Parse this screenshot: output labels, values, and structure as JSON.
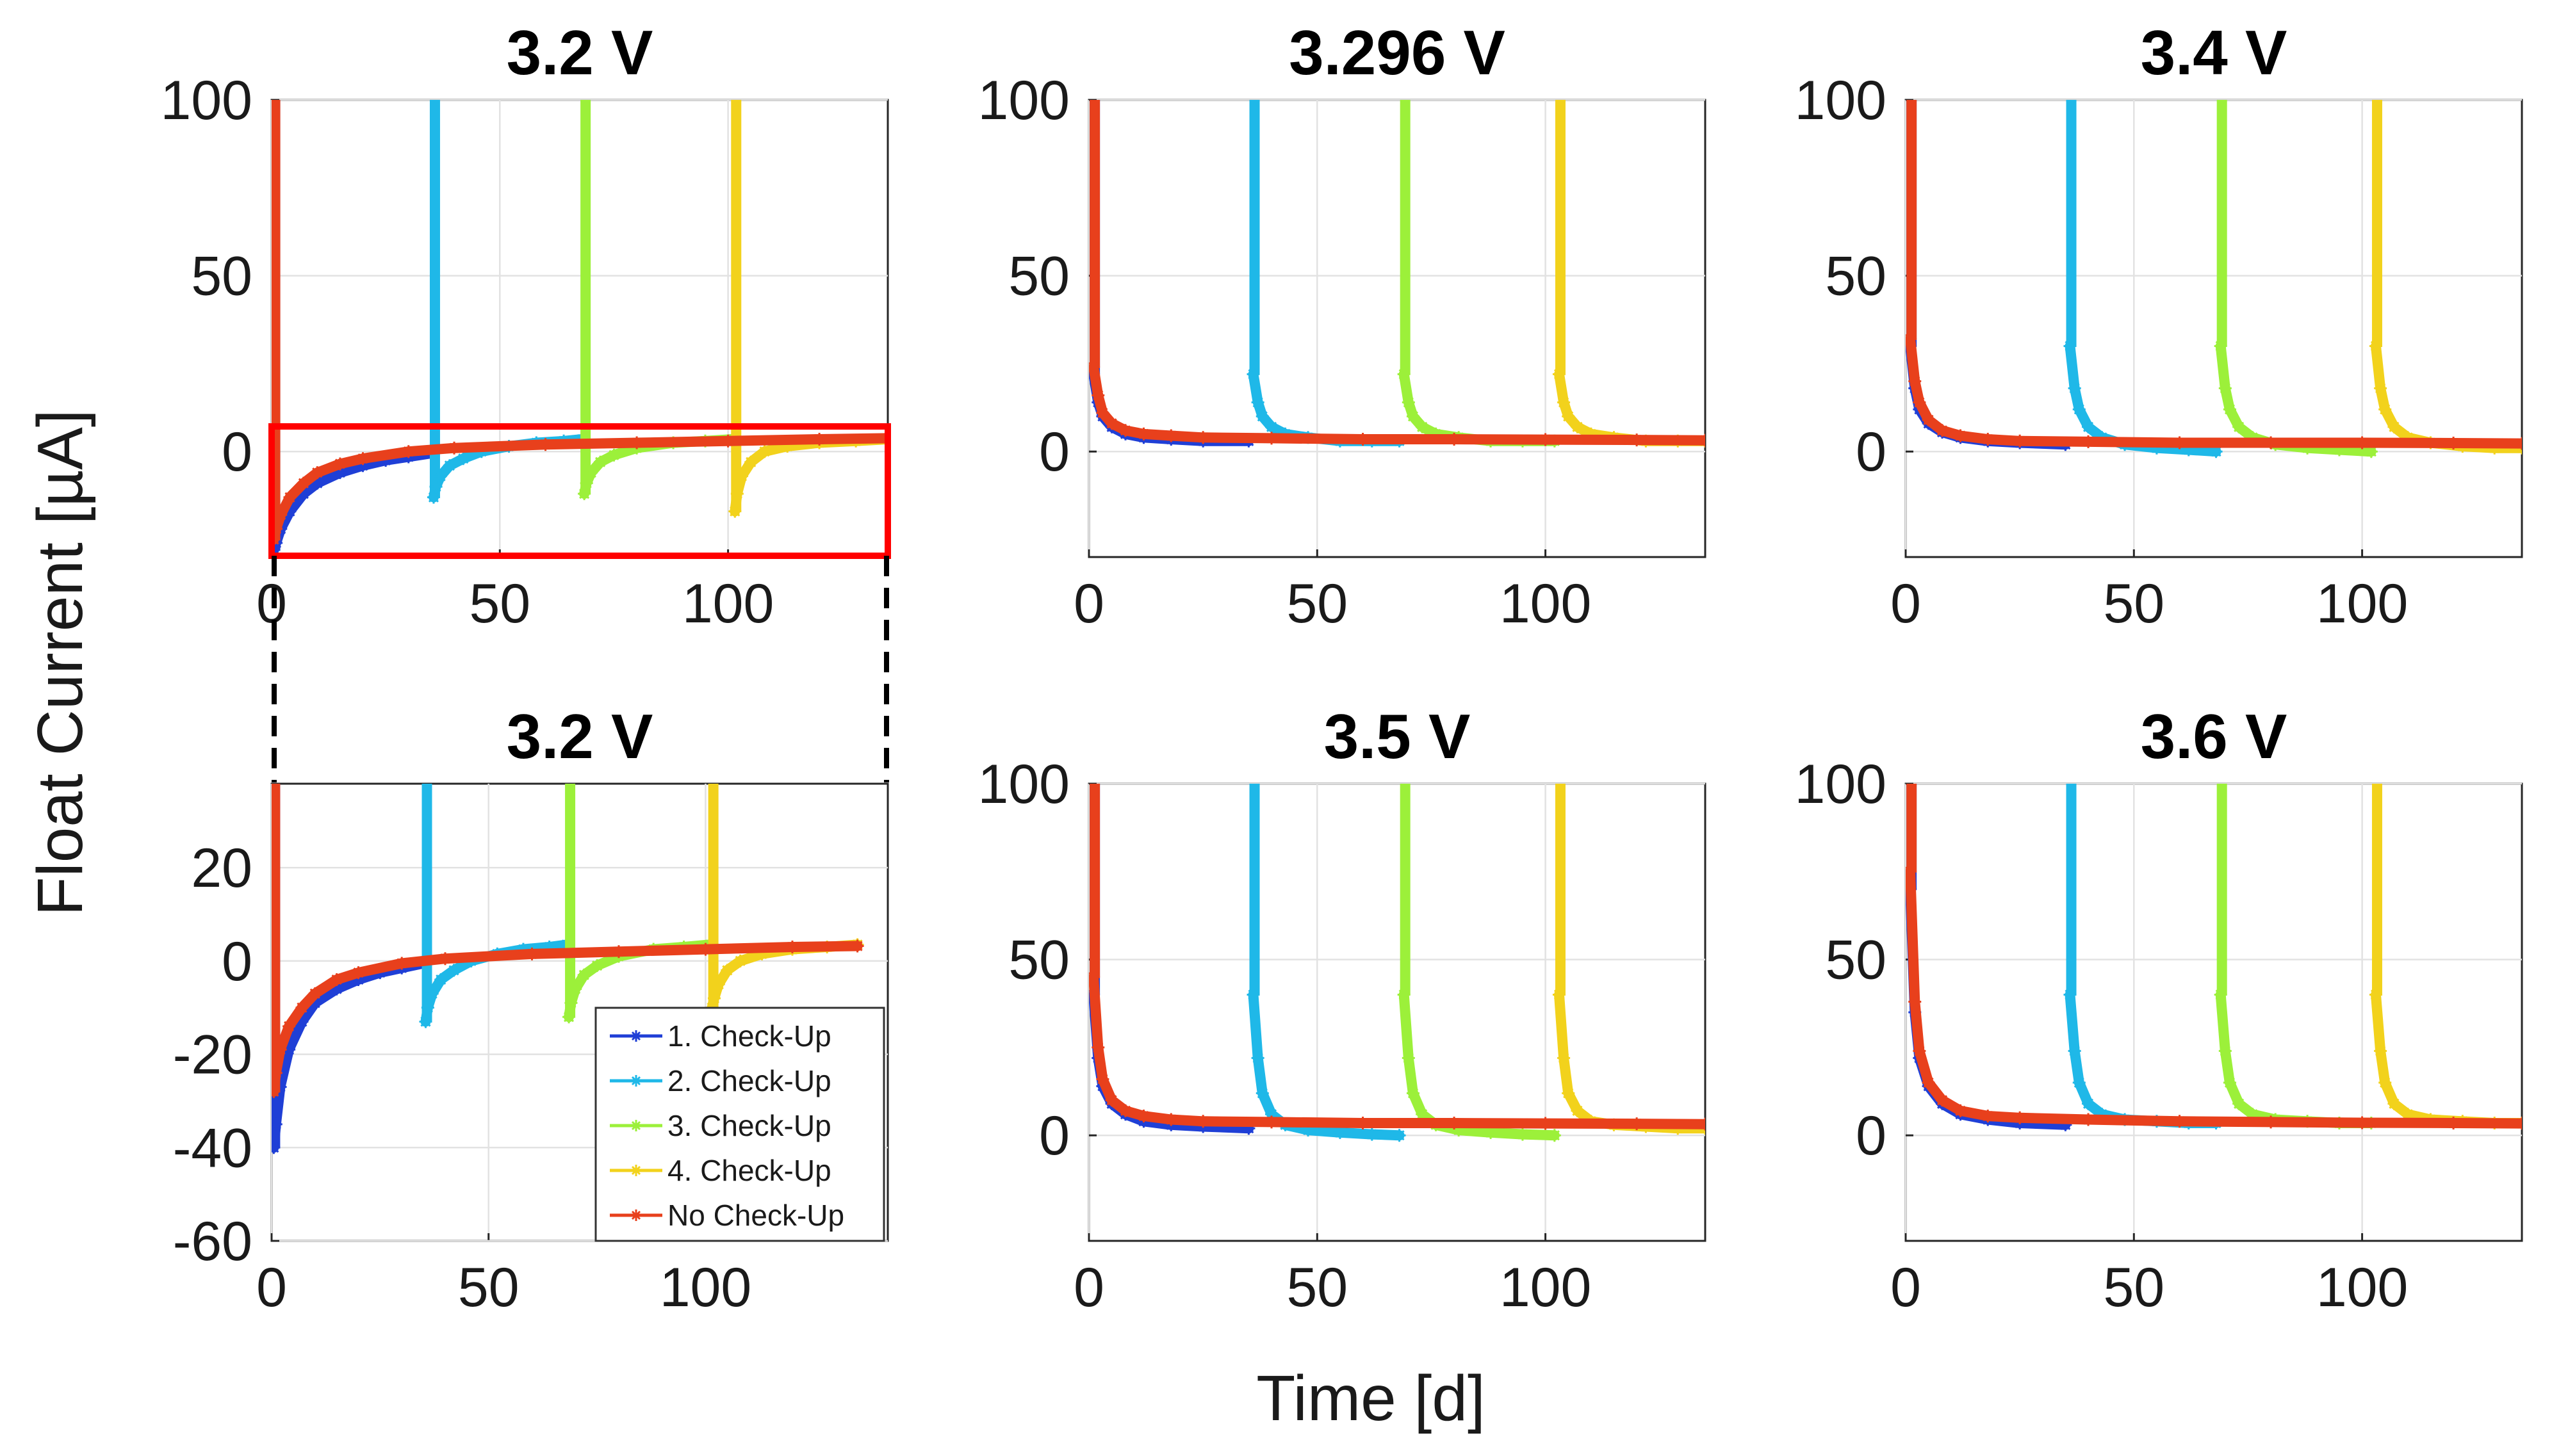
{
  "figure": {
    "ylabel": "Float Current [µA]",
    "xlabel": "Time [d]",
    "zoom_box_color": "#ff0000"
  },
  "legend": {
    "entries": [
      {
        "label": "1. Check-Up",
        "color": "#1f3fd6"
      },
      {
        "label": "2. Check-Up",
        "color": "#1fb8e8"
      },
      {
        "label": "3. Check-Up",
        "color": "#9cf03a"
      },
      {
        "label": "4. Check-Up",
        "color": "#f2d21c"
      },
      {
        "label": "No Check-Up",
        "color": "#e8401c"
      }
    ]
  },
  "chart_data": [
    {
      "id": "p1",
      "type": "line",
      "title": "3.2 V",
      "xlim": [
        0,
        135
      ],
      "ylim": [
        -30,
        100
      ],
      "xticks": [
        "0",
        "50",
        "100"
      ],
      "yticks": [
        "100",
        "50",
        "0"
      ],
      "series": [
        {
          "name": "1. Check-Up",
          "x": [
            0.5,
            1,
            2,
            4,
            7,
            10,
            15,
            20,
            25,
            30,
            35
          ],
          "y": [
            -28,
            -26,
            -22,
            -17,
            -12,
            -9,
            -6,
            -4,
            -2.5,
            -1.5,
            -0.5
          ]
        },
        {
          "name": "2. Check-Up",
          "x": [
            35.5,
            36,
            37,
            39,
            42,
            46,
            52,
            58,
            64,
            68
          ],
          "y": [
            -13,
            -10,
            -7,
            -4,
            -2,
            0,
            1.5,
            2.5,
            3,
            3.5
          ]
        },
        {
          "name": "3. Check-Up",
          "x": [
            68.5,
            69,
            70,
            72,
            75,
            80,
            88,
            95,
            101
          ],
          "y": [
            -12,
            -9,
            -6,
            -3,
            -1,
            1,
            2.5,
            3,
            3.5
          ]
        },
        {
          "name": "4. Check-Up",
          "x": [
            101.5,
            102,
            103,
            105,
            108,
            113,
            120,
            128,
            135
          ],
          "y": [
            -17,
            -12,
            -7,
            -3,
            0,
            1.5,
            2.5,
            3,
            3.5
          ]
        },
        {
          "name": "No Check-Up",
          "x": [
            0.5,
            1,
            2,
            4,
            7,
            10,
            15,
            20,
            30,
            40,
            60,
            80,
            100,
            120,
            135
          ],
          "y": [
            -25,
            -22,
            -18,
            -13,
            -9,
            -6,
            -3.5,
            -2,
            0,
            1,
            2,
            2.5,
            3,
            3.5,
            3.8
          ]
        }
      ]
    },
    {
      "id": "p2",
      "type": "line",
      "title": "3.296 V",
      "xlim": [
        0,
        135
      ],
      "ylim": [
        -30,
        100
      ],
      "xticks": [
        "0",
        "50",
        "100"
      ],
      "yticks": [
        "100",
        "50",
        "0"
      ],
      "series": [
        {
          "name": "1. Check-Up",
          "x": [
            1,
            2,
            3,
            5,
            8,
            12,
            18,
            25,
            35
          ],
          "y": [
            22,
            14,
            10,
            7,
            5,
            4,
            3.5,
            3,
            3
          ]
        },
        {
          "name": "2. Check-Up",
          "x": [
            36,
            37,
            38,
            40,
            43,
            48,
            55,
            62,
            68
          ],
          "y": [
            22,
            14,
            10,
            7,
            5,
            4,
            3,
            3,
            3
          ]
        },
        {
          "name": "3. Check-Up",
          "x": [
            69,
            70,
            71,
            73,
            76,
            81,
            88,
            95,
            102
          ],
          "y": [
            22,
            14,
            10,
            7,
            5,
            4,
            3,
            3,
            3
          ]
        },
        {
          "name": "4. Check-Up",
          "x": [
            103,
            104,
            105,
            107,
            110,
            115,
            122,
            129,
            135
          ],
          "y": [
            22,
            14,
            10,
            7,
            5,
            4,
            3,
            3,
            3
          ]
        },
        {
          "name": "No Check-Up",
          "x": [
            1,
            2,
            3,
            5,
            8,
            12,
            18,
            25,
            40,
            60,
            80,
            100,
            120,
            135
          ],
          "y": [
            24,
            16,
            11,
            8,
            6,
            5,
            4.5,
            4,
            3.8,
            3.5,
            3.5,
            3.4,
            3.3,
            3.2
          ]
        }
      ]
    },
    {
      "id": "p3",
      "type": "line",
      "title": "3.4 V",
      "xlim": [
        0,
        135
      ],
      "ylim": [
        -30,
        100
      ],
      "xticks": [
        "0",
        "50",
        "100"
      ],
      "yticks": [
        "100",
        "50",
        "0"
      ],
      "series": [
        {
          "name": "1. Check-Up",
          "x": [
            1,
            2,
            3,
            5,
            8,
            12,
            18,
            25,
            35
          ],
          "y": [
            30,
            18,
            12,
            8,
            5.5,
            4,
            3,
            2.5,
            2
          ]
        },
        {
          "name": "2. Check-Up",
          "x": [
            36,
            37,
            38,
            40,
            43,
            48,
            55,
            62,
            68
          ],
          "y": [
            30,
            18,
            12,
            7,
            4,
            2,
            1,
            0.5,
            0
          ]
        },
        {
          "name": "3. Check-Up",
          "x": [
            69,
            70,
            71,
            73,
            76,
            81,
            88,
            95,
            102
          ],
          "y": [
            30,
            18,
            12,
            7,
            4,
            2,
            1,
            0.5,
            0
          ]
        },
        {
          "name": "4. Check-Up",
          "x": [
            103,
            104,
            105,
            107,
            110,
            115,
            122,
            129,
            135
          ],
          "y": [
            30,
            18,
            12,
            7,
            4,
            2.5,
            1.5,
            1,
            1
          ]
        },
        {
          "name": "No Check-Up",
          "x": [
            1,
            2,
            3,
            5,
            8,
            12,
            18,
            25,
            40,
            60,
            80,
            100,
            120,
            135
          ],
          "y": [
            32,
            20,
            14,
            9,
            6,
            4.5,
            3.5,
            3,
            2.8,
            2.5,
            2.5,
            2.5,
            2.4,
            2.3
          ]
        }
      ]
    },
    {
      "id": "p4",
      "type": "line",
      "title": "3.2 V",
      "xlim": [
        0,
        142
      ],
      "ylim": [
        -60,
        38
      ],
      "xticks": [
        "0",
        "50",
        "100"
      ],
      "yticks": [
        "20",
        "0",
        "-20",
        "-40",
        "-60"
      ],
      "series": [
        {
          "name": "1. Check-Up",
          "x": [
            0.5,
            1,
            2,
            4,
            7,
            10,
            15,
            20,
            25,
            30,
            35
          ],
          "y": [
            -40,
            -35,
            -27,
            -19,
            -13,
            -9,
            -6,
            -4,
            -2.5,
            -1.5,
            -0.5
          ]
        },
        {
          "name": "2. Check-Up",
          "x": [
            35.5,
            36,
            37,
            39,
            42,
            46,
            52,
            58,
            64,
            68
          ],
          "y": [
            -13,
            -10,
            -7,
            -4,
            -2,
            0,
            1.5,
            2.5,
            3,
            3.5
          ]
        },
        {
          "name": "3. Check-Up",
          "x": [
            68.5,
            69,
            70,
            72,
            75,
            80,
            88,
            95,
            101
          ],
          "y": [
            -12,
            -9,
            -6,
            -3,
            -1,
            1,
            2.5,
            3,
            3.5
          ]
        },
        {
          "name": "4. Check-Up",
          "x": [
            101.5,
            102,
            103,
            105,
            108,
            113,
            120,
            128,
            135
          ],
          "y": [
            -10,
            -8,
            -5,
            -2,
            0,
            1.5,
            2.5,
            3,
            3.5
          ]
        },
        {
          "name": "No Check-Up",
          "x": [
            0.5,
            1,
            2,
            4,
            7,
            10,
            15,
            20,
            30,
            40,
            60,
            80,
            100,
            120,
            135
          ],
          "y": [
            -28,
            -24,
            -19,
            -14,
            -10,
            -7,
            -4,
            -2.5,
            -0.5,
            0.5,
            1.5,
            2,
            2.5,
            3,
            3.2
          ]
        }
      ]
    },
    {
      "id": "p5",
      "type": "line",
      "title": "3.5 V",
      "xlim": [
        0,
        135
      ],
      "ylim": [
        -30,
        100
      ],
      "xticks": [
        "0",
        "50",
        "100"
      ],
      "yticks": [
        "100",
        "50",
        "0"
      ],
      "series": [
        {
          "name": "1. Check-Up",
          "x": [
            1,
            2,
            3,
            5,
            8,
            12,
            18,
            25,
            35
          ],
          "y": [
            40,
            22,
            14,
            9,
            6,
            4,
            3,
            2.5,
            2
          ]
        },
        {
          "name": "2. Check-Up",
          "x": [
            36,
            37,
            38,
            40,
            43,
            48,
            55,
            62,
            68
          ],
          "y": [
            40,
            22,
            12,
            6,
            3,
            1.5,
            0.8,
            0.3,
            0
          ]
        },
        {
          "name": "3. Check-Up",
          "x": [
            69,
            70,
            71,
            73,
            76,
            81,
            88,
            95,
            102
          ],
          "y": [
            40,
            22,
            12,
            6,
            3,
            1.5,
            0.8,
            0.3,
            0
          ]
        },
        {
          "name": "4. Check-Up",
          "x": [
            103,
            104,
            105,
            107,
            110,
            115,
            122,
            129,
            135
          ],
          "y": [
            40,
            22,
            12,
            7,
            4,
            3,
            2.5,
            2,
            2
          ]
        },
        {
          "name": "No Check-Up",
          "x": [
            1,
            2,
            3,
            5,
            8,
            12,
            18,
            25,
            40,
            60,
            80,
            100,
            120,
            135
          ],
          "y": [
            45,
            25,
            16,
            10,
            7,
            5.5,
            4.5,
            4,
            3.8,
            3.5,
            3.5,
            3.4,
            3.3,
            3.2
          ]
        }
      ]
    },
    {
      "id": "p6",
      "type": "line",
      "title": "3.6 V",
      "xlim": [
        0,
        135
      ],
      "ylim": [
        -30,
        100
      ],
      "xticks": [
        "0",
        "50",
        "100"
      ],
      "yticks": [
        "100",
        "50",
        "0"
      ],
      "series": [
        {
          "name": "1. Check-Up",
          "x": [
            1,
            2,
            3,
            5,
            8,
            12,
            18,
            25,
            35
          ],
          "y": [
            70,
            35,
            22,
            14,
            9,
            6,
            4.5,
            3.5,
            3
          ]
        },
        {
          "name": "2. Check-Up",
          "x": [
            36,
            37,
            38,
            40,
            43,
            48,
            55,
            62,
            68
          ],
          "y": [
            40,
            24,
            15,
            9,
            6,
            4.5,
            4,
            3.5,
            3.5
          ]
        },
        {
          "name": "3. Check-Up",
          "x": [
            69,
            70,
            71,
            73,
            76,
            81,
            88,
            95,
            102
          ],
          "y": [
            40,
            24,
            15,
            9,
            6,
            4.5,
            4,
            3.5,
            3.5
          ]
        },
        {
          "name": "4. Check-Up",
          "x": [
            103,
            104,
            105,
            107,
            110,
            115,
            122,
            129,
            135
          ],
          "y": [
            40,
            24,
            15,
            9,
            6,
            4.5,
            4,
            3.5,
            3.5
          ]
        },
        {
          "name": "No Check-Up",
          "x": [
            1,
            2,
            3,
            5,
            8,
            12,
            18,
            25,
            40,
            60,
            80,
            100,
            120,
            135
          ],
          "y": [
            75,
            38,
            24,
            15,
            10,
            7,
            5.5,
            5,
            4.5,
            4,
            3.8,
            3.6,
            3.5,
            3.4
          ]
        }
      ]
    }
  ]
}
